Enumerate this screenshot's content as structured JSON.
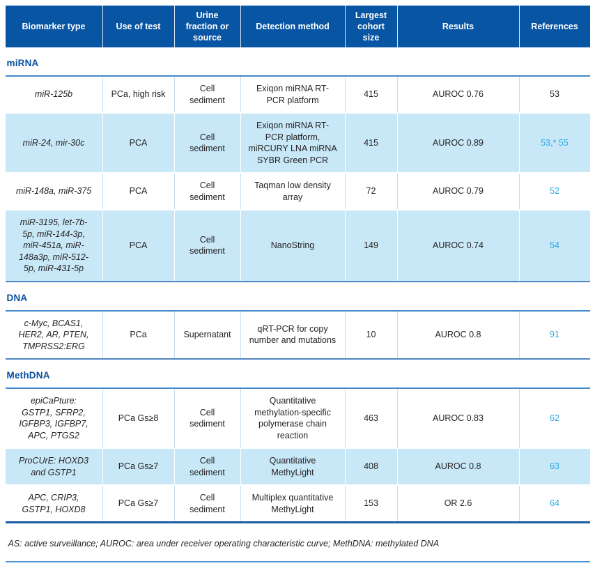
{
  "colors": {
    "header_bg": "#0855a3",
    "section_label": "#05509e",
    "shaded_row_bg": "#c8e8f8",
    "ref_link": "#29abe2",
    "body_text": "#231f20",
    "section_rule": "#4389cb",
    "section_end_rule": "#4f87be",
    "table_end_rule": "#1c5aa6",
    "bottom_rule": "#4d93d3"
  },
  "table": {
    "columns": [
      "Biomarker type",
      "Use of test",
      "Urine fraction or source",
      "Detection method",
      "Largest cohort size",
      "Results",
      "References"
    ],
    "sections": [
      {
        "label": "miRNA",
        "rows": [
          {
            "biomarker": "miR-125b",
            "use": "PCa, high risk",
            "fraction": "Cell sediment",
            "method": "Exiqon miRNA RT-PCR platform",
            "cohort": "415",
            "results": "AUROC 0.76",
            "refs": "53",
            "refs_linked": false
          },
          {
            "biomarker": "miR-24, mir-30c",
            "use": "PCA",
            "fraction": "Cell sediment",
            "method": "Exiqon miRNA RT-PCR platform, miRCURY LNA miRNA SYBR Green PCR",
            "cohort": "415",
            "results": "AUROC 0.89",
            "refs": "53,* 55",
            "refs_linked": true
          },
          {
            "biomarker": "miR-148a, miR-375",
            "use": "PCA",
            "fraction": "Cell sediment",
            "method": "Taqman low density array",
            "cohort": "72",
            "results": "AUROC 0.79",
            "refs": "52",
            "refs_linked": true
          },
          {
            "biomarker": "miR-3195, let-7b-5p, miR-144-3p, miR-451a, miR-148a3p, miR-512-5p, miR-431-5p",
            "use": "PCA",
            "fraction": "Cell sediment",
            "method": "NanoString",
            "cohort": "149",
            "results": "AUROC 0.74",
            "refs": "54",
            "refs_linked": true,
            "tall": true
          }
        ]
      },
      {
        "label": "DNA",
        "rows": [
          {
            "biomarker": "c-Myc, BCAS1, HER2, AR, PTEN, TMPRSS2:ERG",
            "use": "PCa",
            "fraction": "Supernatant",
            "method": "qRT-PCR for copy number and mutations",
            "cohort": "10",
            "results": "AUROC 0.8",
            "refs": "91",
            "refs_linked": true
          }
        ]
      },
      {
        "label": "MethDNA",
        "rows": [
          {
            "biomarker": "epiCaPture: GSTP1, SFRP2, IGFBP3, IGFBP7, APC, PTGS2",
            "use": "PCa Gs≥8",
            "fraction": "Cell sediment",
            "method": "Quantitative methylation-specific polymerase chain reaction",
            "cohort": "463",
            "results": "AUROC 0.83",
            "refs": "62",
            "refs_linked": true
          },
          {
            "biomarker": "ProCUrE: HOXD3 and GSTP1",
            "use": "PCa Gs≥7",
            "fraction": "Cell sediment",
            "method": "Quantitative MethyLight",
            "cohort": "408",
            "results": "AUROC 0.8",
            "refs": "63",
            "refs_linked": true
          },
          {
            "biomarker": "APC, CRIP3, GSTP1, HOXD8",
            "use": "PCa Gs≥7",
            "fraction": "Cell sediment",
            "method": "Multiplex quantitative MethyLight",
            "cohort": "153",
            "results": "OR 2.6",
            "refs": "64",
            "refs_linked": true
          }
        ]
      }
    ],
    "footnote": "AS: active surveillance; AUROC: area under receiver operating characteristic curve; MethDNA: methylated DNA"
  }
}
